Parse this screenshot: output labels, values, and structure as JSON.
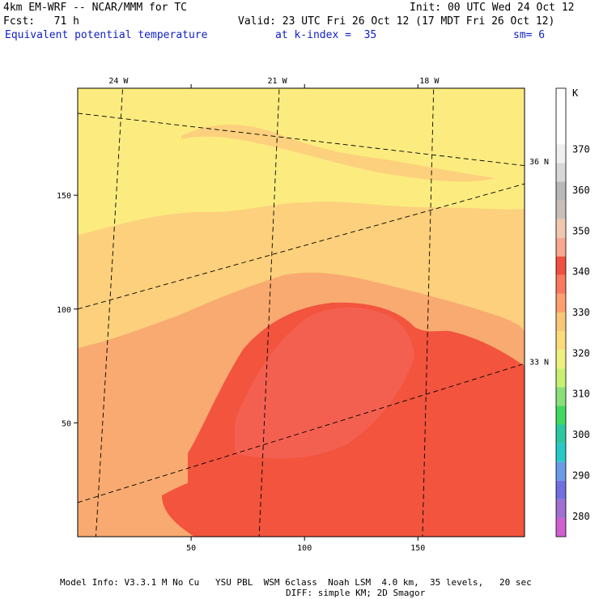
{
  "header": {
    "model": "4km EM-WRF -- NCAR/MMM for TC",
    "init": "Init: 00 UTC Wed 24 Oct 12",
    "fcst": "Fcst:   71 h",
    "valid": "Valid: 23 UTC Fri 26 Oct 12 (17 MDT Fri 26 Oct 12)",
    "field": "Equivalent potential temperature",
    "kindex": "at k-index =  35",
    "sm": "sm= 6"
  },
  "footer": {
    "line1": "Model Info: V3.3.1 M No Cu   YSU PBL  WSM 6class  Noah LSM  4.0 km,  35 levels,   20 sec",
    "line2": "DIFF: simple KM; 2D Smagor"
  },
  "chart_data": {
    "type": "heatmap",
    "title": "Equivalent potential temperature",
    "xlim": [
      0,
      197
    ],
    "ylim": [
      0,
      197
    ],
    "x_ticks": [
      "50",
      "100",
      "150"
    ],
    "y_ticks": [
      "50",
      "100",
      "150"
    ],
    "lon_labels": [
      "24 W",
      "21 W",
      "18 W"
    ],
    "lat_labels": [
      "36 N",
      "33 N"
    ],
    "colorbar": {
      "unit": "K",
      "levels": [
        280,
        290,
        300,
        310,
        320,
        330,
        340,
        350,
        360,
        370
      ],
      "colors": [
        "#d060d0",
        "#a070d0",
        "#7070e0",
        "#6a9ae8",
        "#28c8c8",
        "#2ac8a0",
        "#40d860",
        "#8ae078",
        "#c8f070",
        "#f0f080",
        "#fcdc78",
        "#f8c878",
        "#fca070",
        "#f87860",
        "#f05040",
        "#f8a890",
        "#f0c8b0",
        "#c8c0b8",
        "#b8b8b8",
        "#d8d8d8",
        "#f0f0f0",
        "#ffffff",
        "#ffffff",
        "#ffffff"
      ],
      "labels": [
        "280",
        "290",
        "300",
        "310",
        "320",
        "330",
        "340",
        "350",
        "360",
        "370"
      ]
    },
    "value_regions": [
      {
        "name": "north",
        "value_K": 325
      },
      {
        "name": "band",
        "value_K": 330
      },
      {
        "name": "mid",
        "value_K": 335
      },
      {
        "name": "core",
        "value_K": 345
      }
    ],
    "grid": true
  }
}
